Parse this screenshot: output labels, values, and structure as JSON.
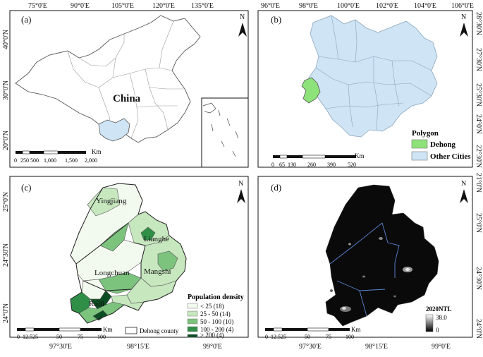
{
  "panels": {
    "a": {
      "label": "(a)",
      "north": "N",
      "top_ticks": [
        "75°0'E",
        "90°0'E",
        "105°0'E",
        "120°0'E",
        "135°0'E"
      ],
      "left_ticks": [
        "40°0'N",
        "30°0'N",
        "20°0'N"
      ],
      "country_label": "China",
      "scale_labels": [
        "0",
        "250",
        "500",
        "1,000",
        "1,500",
        "2,000"
      ],
      "scale_unit": "Km",
      "colors": {
        "highlight": "#cfe4f4",
        "outline": "#444444"
      }
    },
    "b": {
      "label": "(b)",
      "north": "N",
      "top_ticks": [
        "96°0'E",
        "98°0'E",
        "100°0'E",
        "102°0'E",
        "104°0'E",
        "106°0'E"
      ],
      "right_ticks": [
        "28°30'N",
        "27°30'N",
        "25°30'N",
        "24°0'N",
        "22°30'N",
        "21°0'N"
      ],
      "legend_title": "Polygon",
      "legend_items": [
        {
          "label": "Dehong",
          "color": "#8ee27a"
        },
        {
          "label": "Other Cities",
          "color": "#cfe4f4"
        }
      ],
      "scale_labels": [
        "0",
        "65",
        "130",
        "260",
        "390",
        "520"
      ],
      "scale_unit": "Km"
    },
    "c": {
      "label": "(c)",
      "north": "N",
      "bottom_ticks": [
        "97°30'E",
        "98°15'E",
        "99°0'E"
      ],
      "left_ticks": [
        "25°0'N",
        "24°30'N",
        "24°0'N"
      ],
      "place_labels": [
        "Yingjiang",
        "Lianghe",
        "Longchuan",
        "Mangshi",
        "Ruili"
      ],
      "legend_title": "Population density",
      "legend_items": [
        {
          "label": "< 25 (18)",
          "color": "#f2f9ee"
        },
        {
          "label": "25 - 50 (14)",
          "color": "#c7e7bf"
        },
        {
          "label": "50 - 100 (10)",
          "color": "#7cc47e"
        },
        {
          "label": "100 - 200 (4)",
          "color": "#2f8f46"
        },
        {
          "label": "> 200 (4)",
          "color": "#0b4d22"
        }
      ],
      "boundary_legend": "Dehong county",
      "scale_labels": [
        "0",
        "12.5",
        "25",
        "50",
        "75",
        "100"
      ],
      "scale_unit": "Km"
    },
    "d": {
      "label": "(d)",
      "north": "N",
      "bottom_ticks": [
        "97°30'E",
        "98°15'E",
        "99°0'E"
      ],
      "right_ticks": [
        "25°0'N",
        "24°30'N",
        "24°0'N"
      ],
      "legend_title": "2020NTL",
      "legend_max": "38.0",
      "legend_min": "0",
      "scale_labels": [
        "0",
        "12.5",
        "25",
        "50",
        "75",
        "100"
      ],
      "scale_unit": "Km",
      "colors": {
        "background": "#0a0a0a",
        "boundary": "#5b86d6"
      }
    }
  }
}
